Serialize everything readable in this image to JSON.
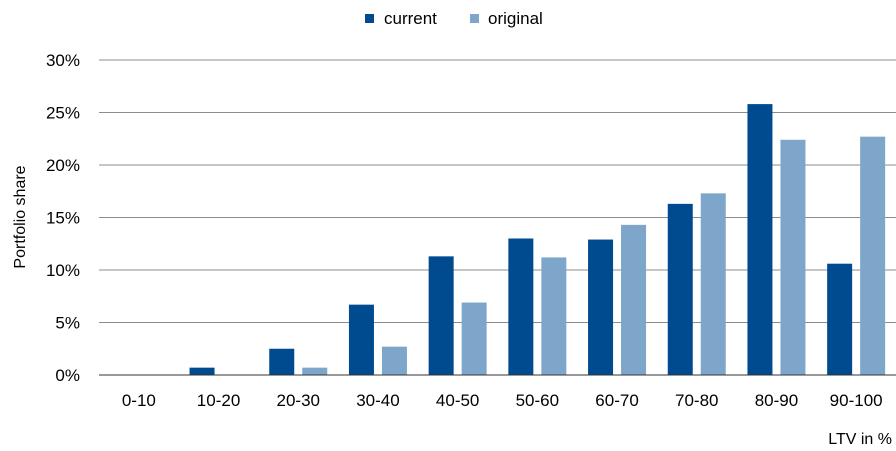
{
  "chart_data": {
    "type": "bar",
    "categories": [
      "0-10",
      "10-20",
      "20-30",
      "30-40",
      "40-50",
      "50-60",
      "60-70",
      "70-80",
      "80-90",
      "90-100"
    ],
    "series": [
      {
        "name": "current",
        "color": "#004a8f",
        "values": [
          0.0,
          0.7,
          2.5,
          6.7,
          11.3,
          13.0,
          12.9,
          16.3,
          25.8,
          10.6
        ]
      },
      {
        "name": "original",
        "color": "#7ea6cb",
        "values": [
          0.0,
          0.0,
          0.7,
          2.7,
          6.9,
          11.2,
          14.3,
          17.3,
          22.4,
          22.7
        ]
      }
    ],
    "xlabel": "LTV in %",
    "ylabel": "Portfolio share",
    "ylim": [
      0,
      30
    ],
    "yticks": [
      "0%",
      "5%",
      "10%",
      "15%",
      "20%",
      "25%",
      "30%"
    ],
    "ytick_values": [
      0,
      5,
      10,
      15,
      20,
      25,
      30
    ],
    "grid": true,
    "legend_position": "top-center"
  }
}
